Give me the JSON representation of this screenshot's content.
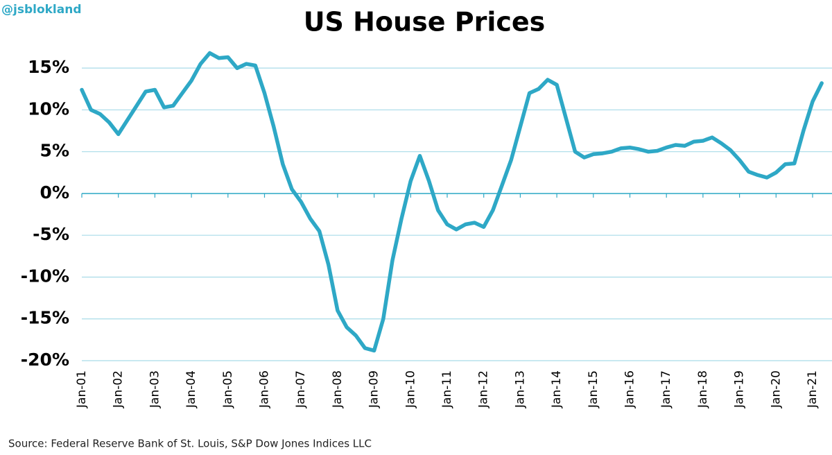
{
  "chart_data": {
    "type": "line",
    "title": "US House Prices",
    "watermark": "@jsblokland",
    "source": "Source: Federal Reserve Bank of St. Louis, S&P Dow Jones Indices LLC",
    "color": "#2ea8c6",
    "grid": true,
    "categories": [
      "Jan-01",
      null,
      null,
      null,
      "Jan-02",
      null,
      null,
      null,
      "Jan-03",
      null,
      null,
      null,
      "Jan-04",
      null,
      null,
      null,
      "Jan-05",
      null,
      null,
      null,
      "Jan-06",
      null,
      null,
      null,
      "Jan-07",
      null,
      null,
      null,
      "Jan-08",
      null,
      null,
      null,
      "Jan-09",
      null,
      null,
      null,
      "Jan-10",
      null,
      null,
      null,
      "Jan-11",
      null,
      null,
      null,
      "Jan-12",
      null,
      null,
      null,
      "Jan-13",
      null,
      null,
      null,
      "Jan-14",
      null,
      null,
      null,
      "Jan-15",
      null,
      null,
      null,
      "Jan-16",
      null,
      null,
      null,
      "Jan-17",
      null,
      null,
      null,
      "Jan-18",
      null,
      null,
      null,
      "Jan-19",
      null,
      null,
      null,
      "Jan-20",
      null,
      null,
      null,
      "Jan-21",
      null
    ],
    "values": [
      12.4,
      10,
      9.5,
      8.5,
      7.1,
      8.8,
      10.5,
      12.2,
      12.4,
      10.3,
      10.5,
      12.0,
      13.5,
      15.5,
      16.8,
      16.2,
      16.3,
      15.0,
      15.5,
      15.3,
      12,
      8,
      3.5,
      0.5,
      -1,
      -3,
      -4.5,
      -8.5,
      -14,
      -16,
      -17,
      -18.5,
      -18.8,
      -15,
      -8,
      -3,
      1.5,
      4.5,
      1.5,
      -2,
      -3.7,
      -4.3,
      -3.7,
      -3.5,
      -4,
      -2,
      1,
      4,
      8,
      12,
      12.5,
      13.6,
      13,
      9,
      5,
      4.3,
      4.7,
      4.8,
      5.0,
      5.4,
      5.5,
      5.3,
      5.0,
      5.1,
      5.5,
      5.8,
      5.7,
      6.2,
      6.3,
      6.7,
      6.0,
      5.2,
      4.0,
      2.6,
      2.2,
      1.9,
      2.5,
      3.5,
      3.6,
      7.5,
      11,
      13.2
    ],
    "ylim": [
      -20,
      18
    ],
    "yticks": [
      {
        "value": -20,
        "label": "-20%"
      },
      {
        "value": -15,
        "label": "-15%"
      },
      {
        "value": -10,
        "label": "-10%"
      },
      {
        "value": -5,
        "label": "-5%"
      },
      {
        "value": 0,
        "label": "0%"
      },
      {
        "value": 5,
        "label": "5%"
      },
      {
        "value": 10,
        "label": "10%"
      },
      {
        "value": 15,
        "label": "15%"
      }
    ]
  }
}
